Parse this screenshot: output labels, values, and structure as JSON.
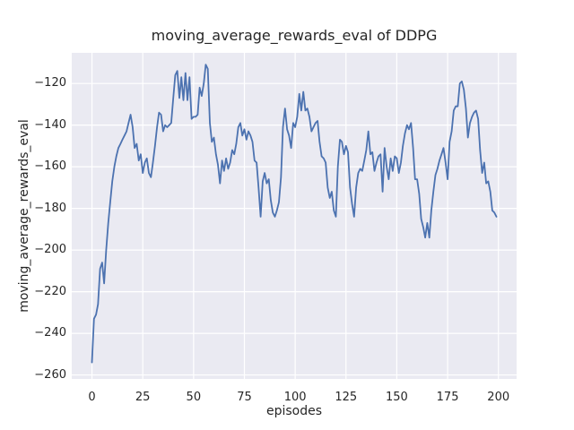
{
  "figure": {
    "title": "moving_average_rewards_eval of DDPG",
    "xlabel": "episodes",
    "ylabel": "moving_average_rewards_eval"
  },
  "chart_data": {
    "type": "line",
    "title": "moving_average_rewards_eval of DDPG",
    "xlabel": "episodes",
    "ylabel": "moving_average_rewards_eval",
    "x_start": 0,
    "x_step": 1,
    "xlim": [
      -9.95,
      208.95
    ],
    "ylim": [
      -261.9,
      -105.3
    ],
    "grid": true,
    "legend": "none",
    "x_ticks": {
      "values": [
        0,
        25,
        50,
        75,
        100,
        125,
        150,
        175,
        200
      ],
      "labels": [
        "0",
        "25",
        "50",
        "75",
        "100",
        "125",
        "150",
        "175",
        "200"
      ]
    },
    "y_ticks": {
      "values": [
        -120,
        -140,
        -160,
        -180,
        -200,
        -220,
        -240,
        -260
      ],
      "labels": [
        "−120",
        "−140",
        "−160",
        "−180",
        "−200",
        "−220",
        "−240",
        "−260"
      ]
    },
    "style": {
      "fig_bg": "#ffffff",
      "axes_bg": "#eaeaf2",
      "grid_color": "#ffffff",
      "text_color": "#262626",
      "line_color": "#4c72b0",
      "line_width": 1.8
    },
    "series": [
      {
        "name": "moving_average_rewards_eval",
        "color": "#4c72b0",
        "values": [
          -254,
          -233,
          -231,
          -226,
          -209,
          -206,
          -216,
          -200,
          -187,
          -177,
          -167,
          -160,
          -155,
          -151,
          -149,
          -147,
          -145,
          -143,
          -139,
          -135,
          -141,
          -151,
          -149,
          -157,
          -154,
          -163,
          -158,
          -156,
          -163,
          -165,
          -158,
          -150,
          -141,
          -134,
          -135,
          -143,
          -140,
          -141,
          -140,
          -139,
          -127,
          -116,
          -114,
          -127,
          -117,
          -128,
          -115,
          -128,
          -117,
          -137,
          -136,
          -136,
          -135,
          -122,
          -126,
          -120,
          -111,
          -113,
          -139,
          -148,
          -146,
          -154,
          -159,
          -168,
          -157,
          -162,
          -156,
          -161,
          -158,
          -152,
          -154,
          -149,
          -141,
          -139,
          -145,
          -142,
          -147,
          -143,
          -145,
          -148,
          -157,
          -158,
          -170,
          -184,
          -167,
          -163,
          -168,
          -166,
          -176,
          -182,
          -184,
          -181,
          -177,
          -165,
          -141,
          -132,
          -142,
          -145,
          -151,
          -139,
          -141,
          -136,
          -125,
          -133,
          -124,
          -133,
          -132,
          -136,
          -143,
          -141,
          -139,
          -138,
          -148,
          -155,
          -156,
          -158,
          -170,
          -175,
          -172,
          -181,
          -184,
          -160,
          -147,
          -148,
          -154,
          -150,
          -153,
          -170,
          -178,
          -184,
          -170,
          -163,
          -161,
          -162,
          -157,
          -152,
          -143,
          -154,
          -153,
          -162,
          -158,
          -155,
          -154,
          -172,
          -151,
          -160,
          -166,
          -156,
          -162,
          -155,
          -156,
          -163,
          -158,
          -150,
          -144,
          -140,
          -142,
          -139,
          -151,
          -166,
          -166,
          -173,
          -185,
          -189,
          -194,
          -187,
          -194,
          -181,
          -172,
          -164,
          -161,
          -157,
          -154,
          -151,
          -158,
          -166,
          -148,
          -143,
          -133,
          -131,
          -131,
          -120,
          -119,
          -123,
          -132,
          -146,
          -139,
          -136,
          -134,
          -133,
          -137,
          -152,
          -163,
          -158,
          -168,
          -167,
          -172,
          -181,
          -182,
          -184
        ]
      }
    ]
  }
}
